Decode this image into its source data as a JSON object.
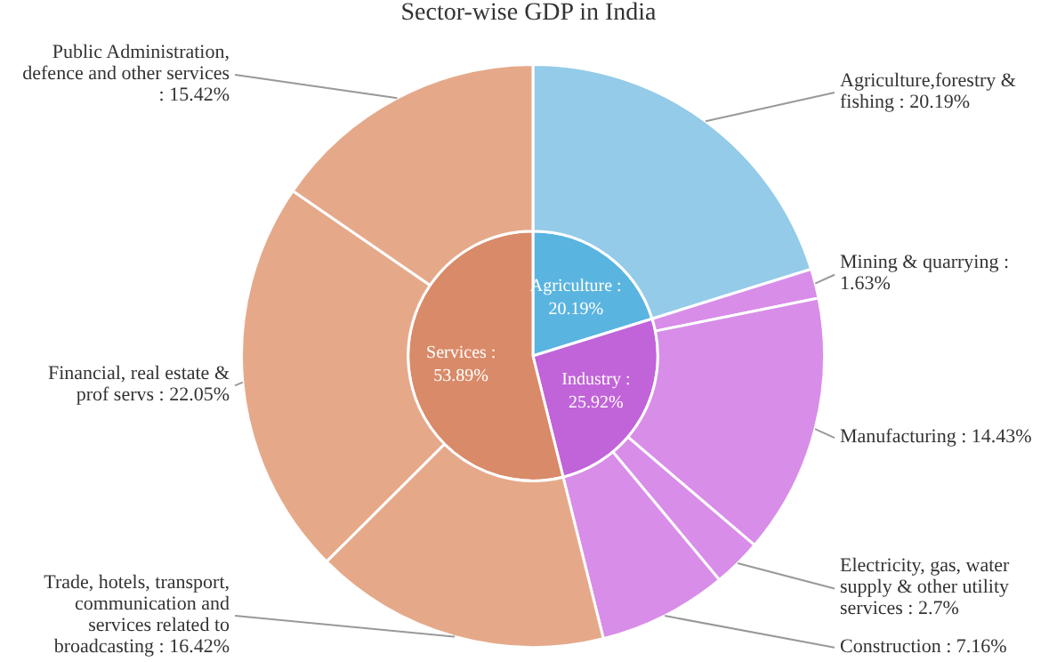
{
  "chart_data": {
    "type": "pie",
    "title": "Sector-wise GDP in India",
    "series": [
      {
        "values": [
          20.19,
          25.92,
          53.89
        ],
        "value_labels": [
          "Agriculture : 20.19%",
          "Industry : 25.92%",
          "Services : 53.89%"
        ],
        "colors": [
          "#5ab4e0",
          "#c163d9",
          "#d98a68"
        ]
      },
      {
        "values": [
          20.19,
          1.63,
          14.43,
          2.7,
          7.16,
          16.42,
          22.05,
          15.42
        ],
        "value_labels": [
          "Agriculture,forestry & fishing : 20.19%",
          "Mining & quarrying : 1.63%",
          "Manufacturing : 14.43%",
          "Electricity, gas, water supply & other utility services : 2.7%",
          "Construction : 7.16%",
          "Trade, hotels, transport, communication and services related to broadcasting : 16.42%",
          "Financial, real estate & prof servs : 22.05%",
          "Public Administration, defence and other services : 15.42%"
        ],
        "colors": [
          "#93cbe8",
          "#d88de8",
          "#d88de8",
          "#d88de8",
          "#d88de8",
          "#e5a98a",
          "#e5a98a",
          "#e5a98a"
        ]
      }
    ]
  }
}
